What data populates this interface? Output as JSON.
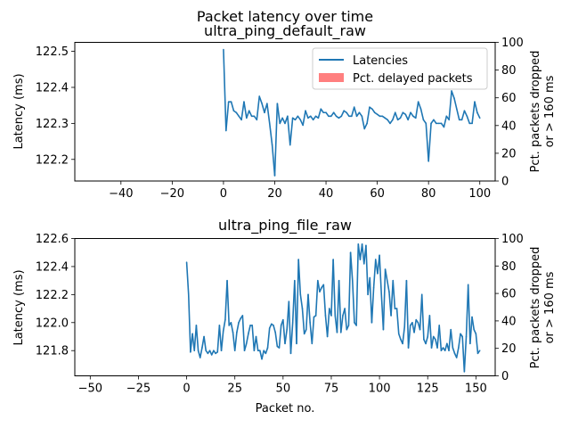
{
  "figure": {
    "suptitle": "Packet latency over time",
    "xlabel": "Packet no.",
    "ylabel_left": "Latency (ms)",
    "ylabel_right_line1": "Pct. packets dropped",
    "ylabel_right_line2": "or > 160 ms",
    "legend": {
      "line_label": "Latencies",
      "bar_label": "Pct. delayed packets"
    },
    "colors": {
      "line": "#1f77b4",
      "bar": "#ff7f7f"
    }
  },
  "chart_data": [
    {
      "type": "line",
      "title": "ultra_ping_default_raw",
      "xlim": [
        -58,
        106
      ],
      "ylim": [
        122.14,
        122.525
      ],
      "y2lim": [
        0,
        100
      ],
      "xticks": [
        -40,
        -20,
        0,
        20,
        40,
        60,
        80,
        100
      ],
      "yticks": [
        122.2,
        122.3,
        122.4,
        122.5
      ],
      "y2ticks": [
        0,
        20,
        40,
        60,
        80,
        100
      ],
      "legend_position": "top-right",
      "series": [
        {
          "name": "Latencies",
          "x0": 0,
          "y": [
            122.505,
            122.28,
            122.36,
            122.36,
            122.335,
            122.33,
            122.32,
            122.31,
            122.36,
            122.315,
            122.335,
            122.32,
            122.32,
            122.31,
            122.375,
            122.355,
            122.33,
            122.355,
            122.3,
            122.24,
            122.155,
            122.355,
            122.3,
            122.315,
            122.3,
            122.32,
            122.24,
            122.315,
            122.31,
            122.32,
            122.31,
            122.295,
            122.335,
            122.315,
            122.32,
            122.31,
            122.32,
            122.315,
            122.34,
            122.33,
            122.33,
            122.32,
            122.32,
            122.33,
            122.32,
            122.315,
            122.32,
            122.335,
            122.33,
            122.32,
            122.32,
            122.345,
            122.32,
            122.33,
            122.32,
            122.285,
            122.3,
            122.345,
            122.34,
            122.33,
            122.325,
            122.32,
            122.32,
            122.315,
            122.31,
            122.3,
            122.31,
            122.33,
            122.31,
            122.315,
            122.33,
            122.325,
            122.31,
            122.33,
            122.32,
            122.315,
            122.36,
            122.34,
            122.31,
            122.3,
            122.195,
            122.3,
            122.31,
            122.3,
            122.3,
            122.3,
            122.29,
            122.32,
            122.31,
            122.39,
            122.37,
            122.34,
            122.31,
            122.31,
            122.335,
            122.32,
            122.3,
            122.3,
            122.36,
            122.33,
            122.315
          ]
        }
      ],
      "bars": {
        "name": "Pct. delayed packets",
        "values": []
      }
    },
    {
      "type": "line",
      "title": "ultra_ping_file_raw",
      "xlim": [
        -58,
        160
      ],
      "ylim": [
        121.62,
        122.6
      ],
      "y2lim": [
        0,
        100
      ],
      "xticks": [
        -50,
        -25,
        0,
        25,
        50,
        75,
        100,
        125,
        150
      ],
      "yticks": [
        121.8,
        122.0,
        122.2,
        122.4,
        122.6
      ],
      "y2ticks": [
        0,
        20,
        40,
        60,
        80,
        100
      ],
      "series": [
        {
          "name": "Latencies",
          "x0": 0,
          "y": [
            122.43,
            122.2,
            121.79,
            121.92,
            121.8,
            121.98,
            121.8,
            121.75,
            121.82,
            121.9,
            121.8,
            121.78,
            121.8,
            121.77,
            121.8,
            121.78,
            121.79,
            121.98,
            121.8,
            121.94,
            122.02,
            122.3,
            121.98,
            122.0,
            121.93,
            121.8,
            121.93,
            122.0,
            122.03,
            122.05,
            121.8,
            121.85,
            121.92,
            121.98,
            121.98,
            121.8,
            121.9,
            121.8,
            121.8,
            121.74,
            121.8,
            121.78,
            121.82,
            121.96,
            121.99,
            121.98,
            121.93,
            121.83,
            121.82,
            121.98,
            122.02,
            121.85,
            121.95,
            122.15,
            121.78,
            122.0,
            122.3,
            121.85,
            122.45,
            122.2,
            122.1,
            121.92,
            121.95,
            122.2,
            122.0,
            121.85,
            122.04,
            122.05,
            122.3,
            122.22,
            122.25,
            122.27,
            122.05,
            121.9,
            122.1,
            122.05,
            122.45,
            122.05,
            121.93,
            122.3,
            121.93,
            122.05,
            122.1,
            121.95,
            121.98,
            122.5,
            122.3,
            122.0,
            121.98,
            122.56,
            122.45,
            122.56,
            122.42,
            122.55,
            122.2,
            122.32,
            122.0,
            122.25,
            122.45,
            122.35,
            122.48,
            122.2,
            121.95,
            122.38,
            122.3,
            122.22,
            122.05,
            122.3,
            122.1,
            122.1,
            121.92,
            121.88,
            121.85,
            121.97,
            122.3,
            121.82,
            121.98,
            122.0,
            121.93,
            122.02,
            122.0,
            121.95,
            122.2,
            121.88,
            121.85,
            121.9,
            122.05,
            121.82,
            121.9,
            121.88,
            121.82,
            121.98,
            121.8,
            121.82,
            121.8,
            121.85,
            121.8,
            121.95,
            121.82,
            121.78,
            121.75,
            121.82,
            121.92,
            121.9,
            121.65,
            121.9,
            122.27,
            121.85,
            122.04,
            121.95,
            121.92,
            121.78,
            121.8
          ]
        }
      ],
      "bars": {
        "name": "Pct. delayed packets",
        "values": []
      }
    }
  ]
}
